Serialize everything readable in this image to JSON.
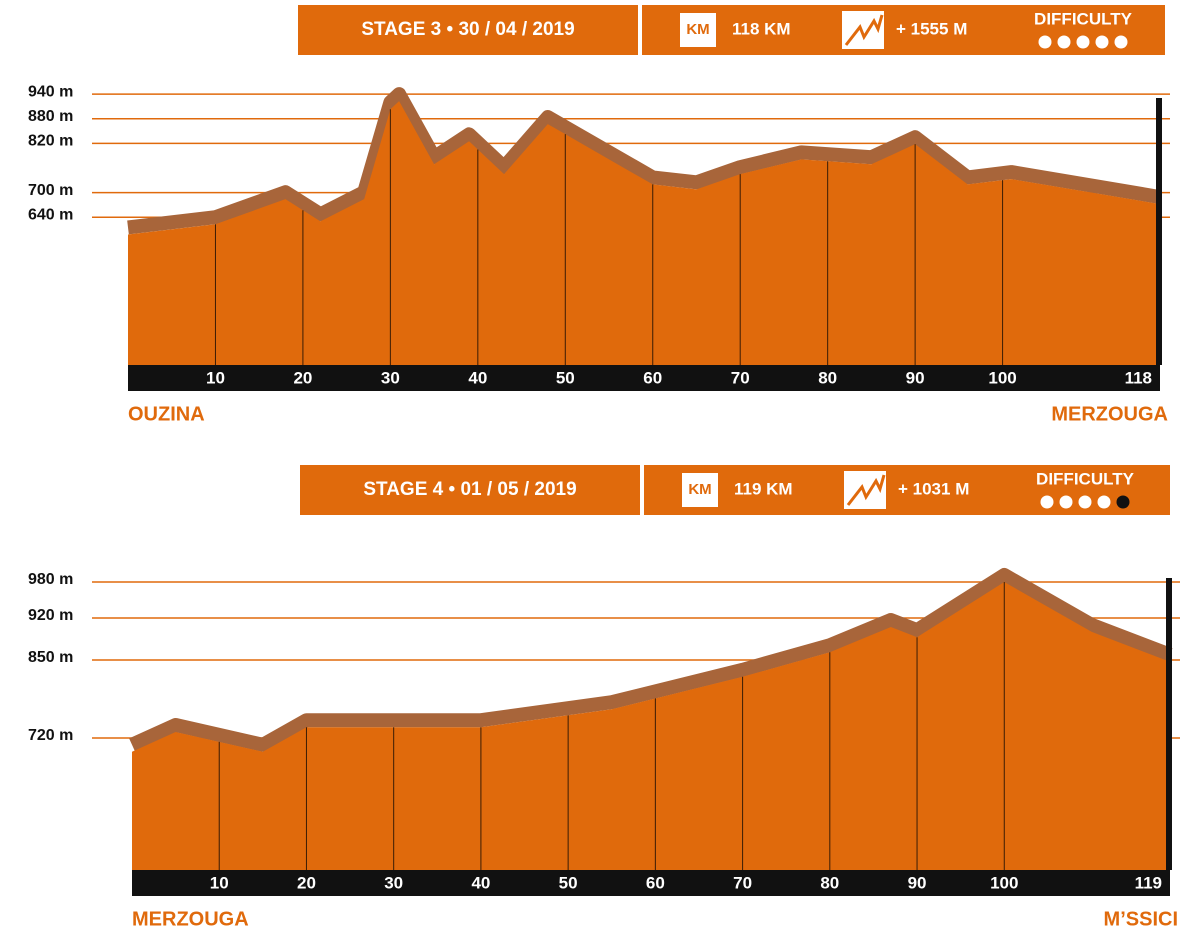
{
  "chart_data": [
    {
      "type": "area",
      "title": "STAGE 3 • 30 / 04 / 2019",
      "distance_icon": "KM",
      "distance": "118 KM",
      "climb": "+ 1555 M",
      "difficulty_label": "DIFFICULTY",
      "difficulty": 5,
      "difficulty_max": 5,
      "start_label": "OUZINA",
      "end_label": "MERZOUGA",
      "color": "#e06a0c",
      "ridge_color": "#a8653a",
      "x": [
        0,
        10,
        18,
        22,
        27,
        30,
        31,
        35,
        39,
        43,
        48,
        55,
        60,
        65,
        70,
        77,
        85,
        90,
        96,
        101,
        118
      ],
      "values": [
        598,
        623,
        684,
        630,
        684,
        903,
        923,
        769,
        825,
        745,
        867,
        781,
        720,
        708,
        745,
        781,
        769,
        818,
        720,
        733,
        672
      ],
      "xlim": [
        0,
        118
      ],
      "xticks": [
        10,
        20,
        30,
        40,
        50,
        60,
        70,
        80,
        90,
        100,
        118
      ],
      "ylim": [
        280,
        950
      ],
      "yticks": [
        {
          "value": 640,
          "label": "640 m"
        },
        {
          "value": 700,
          "label": "700 m"
        },
        {
          "value": 820,
          "label": "820 m"
        },
        {
          "value": 880,
          "label": "880 m"
        },
        {
          "value": 940,
          "label": "940 m"
        }
      ]
    },
    {
      "type": "area",
      "title": "STAGE 4 • 01 / 05 / 2019",
      "distance_icon": "KM",
      "distance": "119 KM",
      "climb": "+ 1031 M",
      "difficulty_label": "DIFFICULTY",
      "difficulty": 4,
      "difficulty_max": 5,
      "start_label": "MERZOUGA",
      "end_label": "M’SSICI",
      "color": "#e06a0c",
      "ridge_color": "#a8653a",
      "x": [
        0,
        5,
        15,
        20,
        40,
        55,
        70,
        80,
        87,
        90,
        100,
        110,
        119
      ],
      "values": [
        697,
        730,
        697,
        738,
        738,
        768,
        822,
        863,
        905,
        888,
        980,
        897,
        847
      ],
      "xlim": [
        0,
        119
      ],
      "xticks": [
        10,
        20,
        30,
        40,
        50,
        60,
        70,
        80,
        90,
        100,
        119
      ],
      "ylim": [
        500,
        1000
      ],
      "yticks": [
        {
          "value": 720,
          "label": "720 m"
        },
        {
          "value": 850,
          "label": "850 m"
        },
        {
          "value": 920,
          "label": "920 m"
        },
        {
          "value": 980,
          "label": "980 m"
        }
      ]
    }
  ]
}
